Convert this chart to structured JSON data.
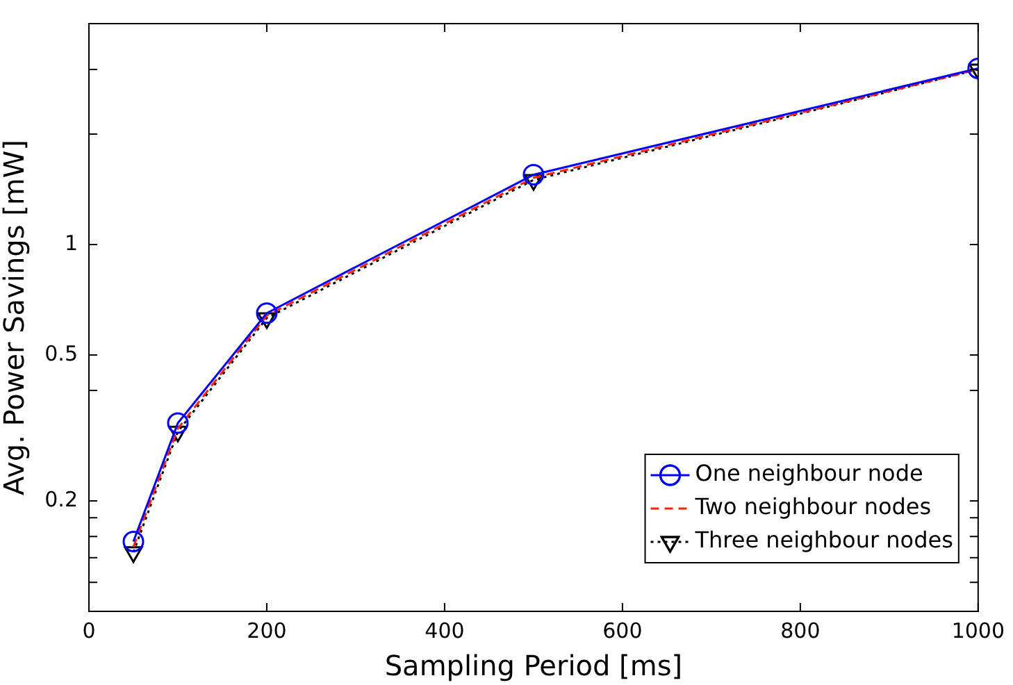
{
  "chart_data": {
    "type": "line",
    "xlabel": "Sampling Period [ms]",
    "ylabel": "Avg. Power Savings [mW]",
    "x": [
      50,
      100,
      200,
      500,
      1000
    ],
    "series": [
      {
        "name": "One neighbour node",
        "color": "#0000ff",
        "values": [
          0.155,
          0.326,
          0.65,
          1.55,
          3.02
        ],
        "marker": "circle",
        "line_style": "solid"
      },
      {
        "name": "Two neighbour nodes",
        "color": "#ff2000",
        "values": [
          0.15,
          0.315,
          0.64,
          1.52,
          3.0
        ],
        "marker": "none",
        "line_style": "dashed"
      },
      {
        "name": "Three neighbour nodes",
        "color": "#000000",
        "values": [
          0.145,
          0.309,
          0.63,
          1.5,
          3.0
        ],
        "marker": "triangle",
        "line_style": "dotted"
      }
    ],
    "xlim": [
      0,
      1000
    ],
    "xticks": [
      0,
      200,
      400,
      600,
      800,
      1000
    ],
    "ylim": [
      0.1,
      4
    ],
    "yticks": [
      {
        "value": 0.12,
        "label": null
      },
      {
        "value": 0.14,
        "label": null
      },
      {
        "value": 0.16,
        "label": null
      },
      {
        "value": 0.18,
        "label": null
      },
      0.2,
      {
        "value": 0.4,
        "label": null
      },
      0.5,
      1,
      {
        "value": 2,
        "label": null
      },
      {
        "value": 3,
        "label": null
      }
    ],
    "log": "y",
    "grid": false,
    "legend": "bottom right"
  }
}
